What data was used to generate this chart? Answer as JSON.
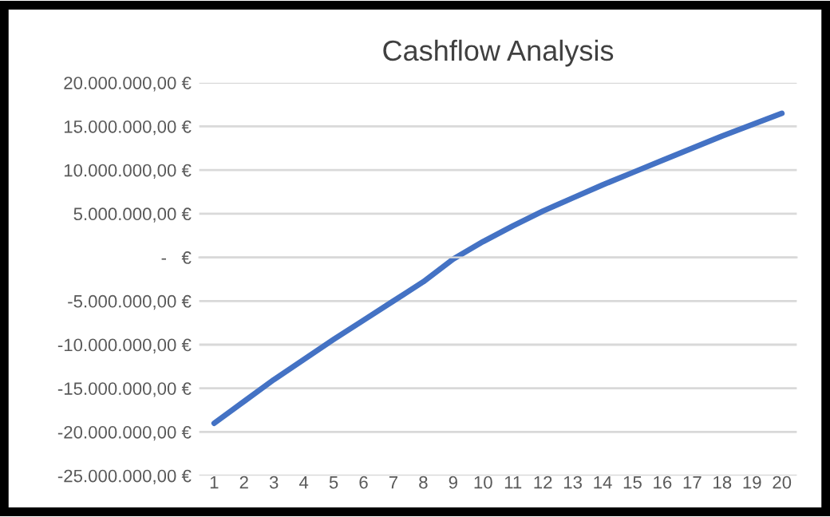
{
  "chart_data": {
    "type": "line",
    "title": "Cashflow Analysis",
    "categories": [
      "1",
      "2",
      "3",
      "4",
      "5",
      "6",
      "7",
      "8",
      "9",
      "10",
      "11",
      "12",
      "13",
      "14",
      "15",
      "16",
      "17",
      "18",
      "19",
      "20"
    ],
    "series": [
      {
        "color": "#4472c4",
        "values": [
          -19000000,
          -16500000,
          -14000000,
          -11700000,
          -9400000,
          -7200000,
          -5000000,
          -2800000,
          -200000,
          1800000,
          3600000,
          5300000,
          6800000,
          8300000,
          9700000,
          11100000,
          12500000,
          13900000,
          15200000,
          16500000
        ]
      }
    ],
    "ylim": [
      -25000000,
      20000000
    ],
    "yticks": [
      {
        "value": -25000000,
        "label": "-25.000.000,00 €"
      },
      {
        "value": -20000000,
        "label": "-20.000.000,00 €"
      },
      {
        "value": -15000000,
        "label": "-15.000.000,00 €"
      },
      {
        "value": -10000000,
        "label": "-10.000.000,00 €"
      },
      {
        "value": -5000000,
        "label": "-5.000.000,00 €"
      },
      {
        "value": 0,
        "label": "-   €"
      },
      {
        "value": 5000000,
        "label": "5.000.000,00 €"
      },
      {
        "value": 10000000,
        "label": "10.000.000,00 €"
      },
      {
        "value": 15000000,
        "label": "15.000.000,00 €"
      },
      {
        "value": 20000000,
        "label": "20.000.000,00 €"
      }
    ],
    "grid": "y",
    "legend": false,
    "marker": "none",
    "line_style": "solid"
  }
}
